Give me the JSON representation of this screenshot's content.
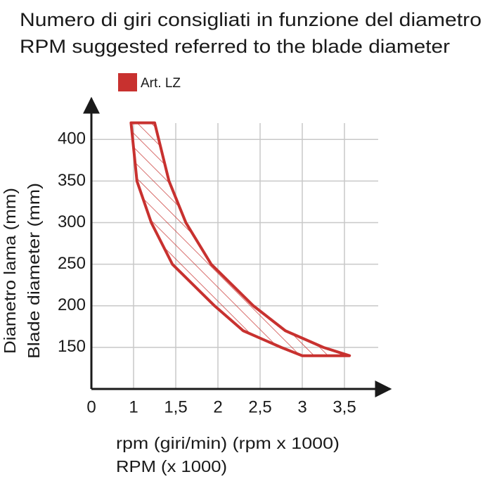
{
  "chart_data": {
    "type": "area",
    "title": "Numero di giri consigliati in funzione del diametro",
    "subtitle": "RPM suggested referred to the blade diameter",
    "x_label": [
      "rpm (giri/min) (rpm x 1000)",
      "RPM (x 1000)"
    ],
    "y_label": [
      "Diametro lama (mm)",
      "Blade diameter (mm)"
    ],
    "origin_label": "0",
    "xlim": [
      0.5,
      3.9
    ],
    "ylim": [
      100,
      440
    ],
    "xticks": [
      1,
      {
        "value": 1.5,
        "label": "1,5"
      },
      2,
      {
        "value": 2.5,
        "label": "2,5"
      },
      3,
      {
        "value": 3.5,
        "label": "3,5"
      }
    ],
    "yticks": [
      150,
      200,
      250,
      300,
      350,
      400
    ],
    "grid": true,
    "series": [
      {
        "name": "Art. LZ",
        "color": "#c8312f",
        "x": [
          0.97,
          1.25,
          1.42,
          1.62,
          1.92,
          2.42,
          2.8,
          3.25,
          3.56,
          3.0,
          2.75,
          2.3,
          1.96,
          1.46,
          1.21,
          1.04,
          0.97
        ],
        "y": [
          420,
          420,
          350,
          300,
          250,
          200,
          170,
          150,
          140,
          140,
          150,
          170,
          200,
          250,
          300,
          350,
          420
        ]
      }
    ]
  }
}
